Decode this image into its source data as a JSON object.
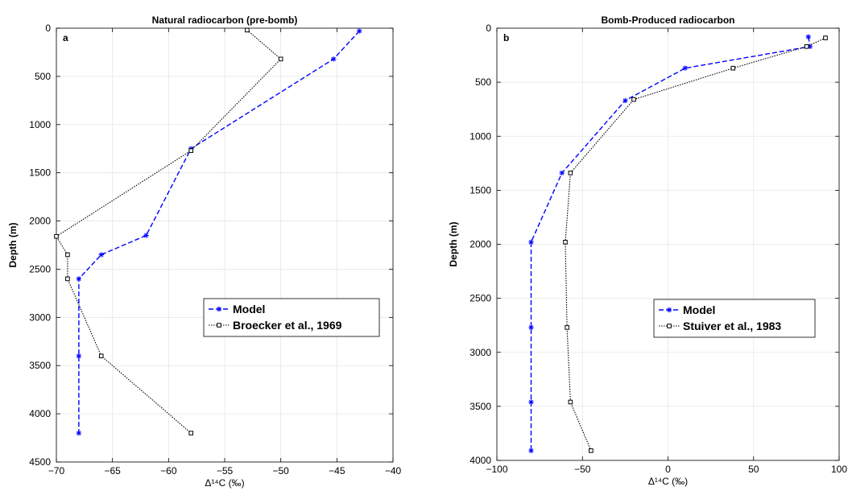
{
  "colors": {
    "model": "#0000ff",
    "obs": "#000000",
    "grid": "#e6e6e6"
  },
  "chart_data": [
    {
      "type": "line",
      "title": "Natural radiocarbon (pre-bomb)",
      "panel_label": "a",
      "xlabel": "Δ¹⁴C (‰)",
      "ylabel": "Depth (m)",
      "xlim": [
        -70,
        -40
      ],
      "ylim": [
        0,
        4500
      ],
      "y_reversed": true,
      "grid": true,
      "xticks": [
        -70,
        -65,
        -60,
        -55,
        -50,
        -45,
        -40
      ],
      "yticks": [
        0,
        500,
        1000,
        1500,
        2000,
        2500,
        3000,
        3500,
        4000,
        4500
      ],
      "legend_position": "center-right",
      "series": [
        {
          "name": "Model",
          "style": "dashed-star",
          "x": [
            -43,
            -45.3,
            -58,
            -62,
            -66,
            -68,
            -68,
            -68
          ],
          "y": [
            30,
            320,
            1250,
            2150,
            2350,
            2600,
            3400,
            4200
          ]
        },
        {
          "name": "Broecker et al., 1969",
          "style": "dotted-square",
          "x": [
            -53,
            -50,
            -58,
            -70,
            -69,
            -69,
            -66,
            -58
          ],
          "y": [
            20,
            320,
            1270,
            2160,
            2350,
            2600,
            3400,
            4200
          ]
        }
      ]
    },
    {
      "type": "line",
      "title": "Bomb-Produced radiocarbon",
      "panel_label": "b",
      "xlabel": "Δ¹⁴C (‰)",
      "ylabel": "Depth (m)",
      "xlim": [
        -100,
        100
      ],
      "ylim": [
        0,
        4000
      ],
      "y_reversed": true,
      "grid": true,
      "xticks": [
        -100,
        -50,
        0,
        50,
        100
      ],
      "yticks": [
        0,
        500,
        1000,
        1500,
        2000,
        2500,
        3000,
        3500,
        4000
      ],
      "legend_position": "center-right",
      "series": [
        {
          "name": "Model",
          "style": "dashed-star",
          "x": [
            82,
            83,
            10,
            -25,
            -62,
            -80,
            -80,
            -80,
            -80
          ],
          "y": [
            80,
            170,
            370,
            670,
            1340,
            1980,
            2770,
            3460,
            3910
          ],
          "draw_mark": [
            true,
            true,
            true,
            true,
            true,
            true,
            true,
            true,
            true
          ]
        },
        {
          "name": "Stuiver et al., 1983",
          "style": "dotted-square",
          "x": [
            92,
            81,
            38,
            -20,
            -57,
            -60,
            -59,
            -57,
            -45
          ],
          "y": [
            90,
            170,
            370,
            660,
            1340,
            1980,
            2770,
            3460,
            3910
          ]
        }
      ]
    }
  ]
}
